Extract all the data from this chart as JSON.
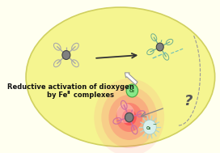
{
  "bg_color": "#fffff0",
  "ellipse_color": "#f5f590",
  "ellipse_edge": "#d0d060",
  "title_line1": "Reductive activation of dioxygen",
  "title_line2": "by Fe",
  "title_line2b": "II",
  "title_line2c": " complexes",
  "title_fontsize": 6.0,
  "question_mark": "?",
  "arrow_color": "#333333",
  "pink_glow_inner": "#ff6080",
  "metal_color": "#808080",
  "ligand_color": "#aaaaaa",
  "green_ligand": "#70b090",
  "pink_ligand": "#d070a0",
  "spike_color": "#b0d8d0",
  "o2_green": "#50c050"
}
